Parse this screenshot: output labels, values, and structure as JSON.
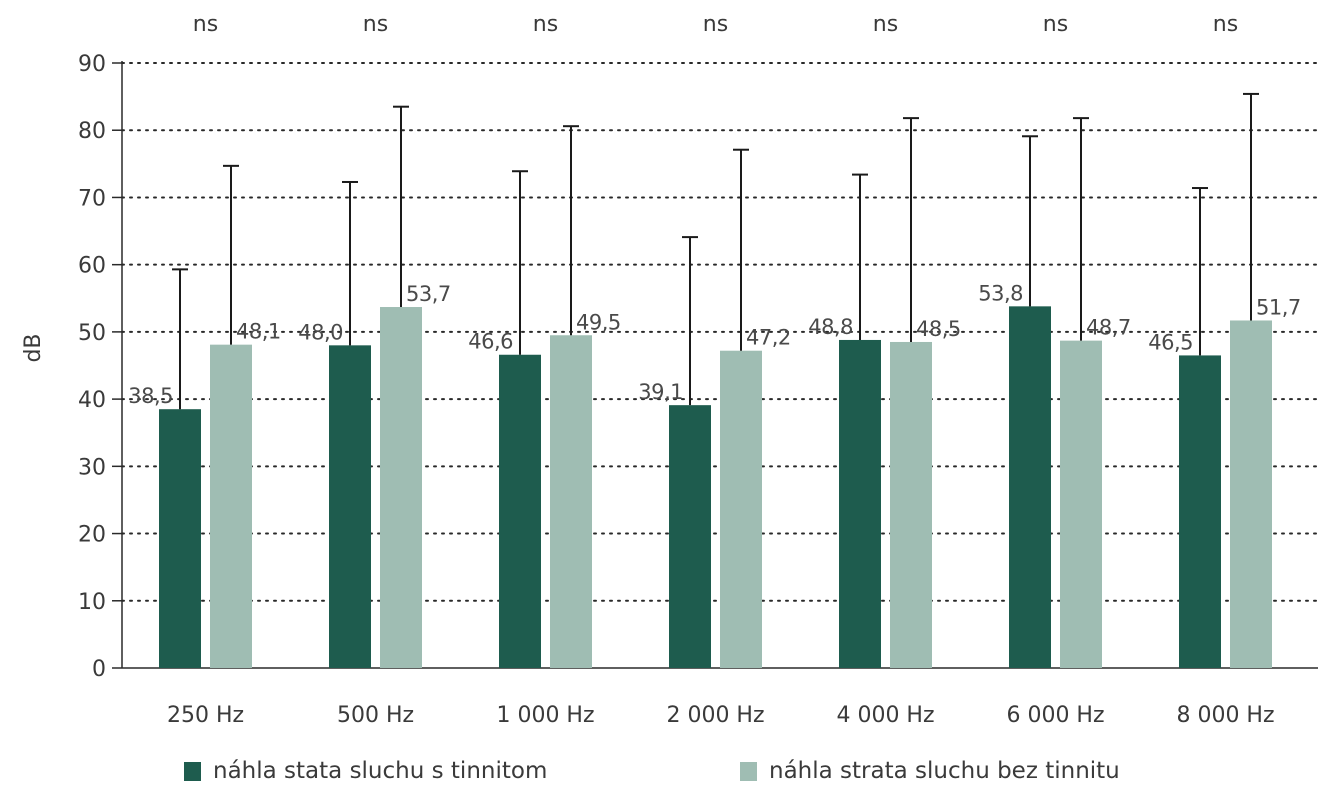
{
  "chart_data": {
    "type": "bar",
    "title": "",
    "xlabel": "",
    "ylabel": "dB",
    "ylim": [
      0,
      90
    ],
    "yticks": [
      0,
      10,
      20,
      30,
      40,
      50,
      60,
      70,
      80,
      90
    ],
    "grid": "dotted horizontal",
    "legend_position": "bottom",
    "categories": [
      "250 Hz",
      "500 Hz",
      "1 000 Hz",
      "2 000 Hz",
      "4 000 Hz",
      "6 000 Hz",
      "8 000 Hz"
    ],
    "significance": [
      "ns",
      "ns",
      "ns",
      "ns",
      "ns",
      "ns",
      "ns"
    ],
    "series": [
      {
        "name": "náhla stata sluchu s tinnitom",
        "color": "#1e5c4e",
        "values": [
          38.5,
          48.0,
          46.6,
          39.1,
          48.8,
          53.8,
          46.5
        ],
        "labels": [
          "38,5",
          "48,0",
          "46,6",
          "39,1",
          "48,8",
          "53,8",
          "46,5"
        ],
        "error_upper": [
          59.3,
          72.3,
          73.9,
          64.1,
          73.4,
          79.1,
          71.4
        ]
      },
      {
        "name": "náhla strata sluchu bez tinnitu",
        "color": "#9fbdb3",
        "values": [
          48.1,
          53.7,
          49.5,
          47.2,
          48.5,
          48.7,
          51.7
        ],
        "labels": [
          "48,1",
          "53,7",
          "49,5",
          "47,2",
          "48,5",
          "48,7",
          "51,7"
        ],
        "error_upper": [
          74.7,
          83.5,
          80.6,
          77.1,
          81.8,
          81.8,
          85.4
        ]
      }
    ]
  }
}
